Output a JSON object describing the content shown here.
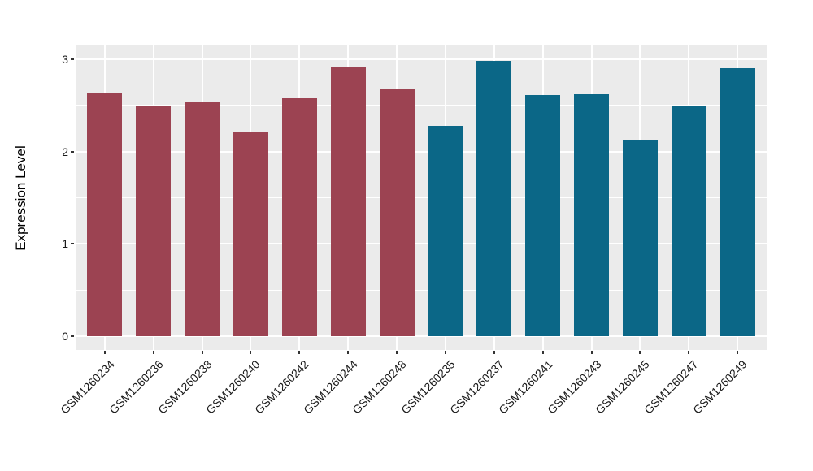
{
  "figure": {
    "background": "#FFFFFF"
  },
  "chart_data": {
    "type": "bar",
    "title": "",
    "xlabel": "",
    "ylabel": "Expression Level",
    "ylim": [
      0,
      3
    ],
    "ylim_expanded": [
      -0.15,
      3.15
    ],
    "yticks": [
      0,
      1,
      2,
      3
    ],
    "yminor": [
      0.5,
      1.5,
      2.5
    ],
    "grid": true,
    "legend_position": "none",
    "panel_bg": "#EBEBEB",
    "grid_color": "#FFFFFF",
    "tick_color": "#333333",
    "text_color": "#1A1A1A",
    "x_label_angle_deg": 45,
    "groups": [
      {
        "name": "left-group",
        "color": "#9C4352"
      },
      {
        "name": "right-group",
        "color": "#0B6787"
      }
    ],
    "categories": [
      "GSM1260234",
      "GSM1260236",
      "GSM1260238",
      "GSM1260240",
      "GSM1260242",
      "GSM1260244",
      "GSM1260248",
      "GSM1260235",
      "GSM1260237",
      "GSM1260241",
      "GSM1260243",
      "GSM1260245",
      "GSM1260247",
      "GSM1260249"
    ],
    "bars": [
      {
        "label": "GSM1260234",
        "value": 2.64,
        "group": 0
      },
      {
        "label": "GSM1260236",
        "value": 2.5,
        "group": 0
      },
      {
        "label": "GSM1260238",
        "value": 2.53,
        "group": 0
      },
      {
        "label": "GSM1260240",
        "value": 2.22,
        "group": 0
      },
      {
        "label": "GSM1260242",
        "value": 2.58,
        "group": 0
      },
      {
        "label": "GSM1260244",
        "value": 2.91,
        "group": 0
      },
      {
        "label": "GSM1260248",
        "value": 2.68,
        "group": 0
      },
      {
        "label": "GSM1260235",
        "value": 2.28,
        "group": 1
      },
      {
        "label": "GSM1260237",
        "value": 2.98,
        "group": 1
      },
      {
        "label": "GSM1260241",
        "value": 2.61,
        "group": 1
      },
      {
        "label": "GSM1260243",
        "value": 2.62,
        "group": 1
      },
      {
        "label": "GSM1260245",
        "value": 2.12,
        "group": 1
      },
      {
        "label": "GSM1260247",
        "value": 2.5,
        "group": 1
      },
      {
        "label": "GSM1260249",
        "value": 2.9,
        "group": 1
      }
    ]
  }
}
